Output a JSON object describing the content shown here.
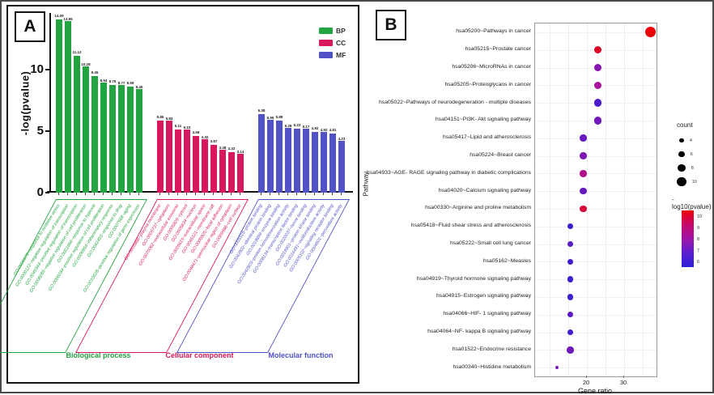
{
  "figure": {
    "panel_a_label": "A",
    "panel_b_label": "B"
  },
  "chart_data": [
    {
      "type": "bar",
      "panel": "A",
      "title": "",
      "xlabel": "",
      "ylabel": "-log(pvalue)",
      "ylim": [
        0,
        15
      ],
      "yticks": [
        0,
        5,
        10
      ],
      "legend_position": "top-right",
      "legend": [
        {
          "label": "BP",
          "color": "#23a342"
        },
        {
          "label": "CC",
          "color": "#d8175e"
        },
        {
          "label": "MF",
          "color": "#5152c6"
        }
      ],
      "groups": [
        {
          "name": "BP",
          "caption": "Biological process",
          "color": "#23a342",
          "categories": [
            "GO:0006979~response to oxidative stress",
            "GO:0000122~negative regulation of transcription",
            "GO:0045944~positive regulation of transcription",
            "GO:0008285~negative regulation of cell proliferation",
            "GO:0001666~response to hypoxia",
            "GO:0008284~positive regulation of cell proliferation",
            "GO:0006954~inflammatory response",
            "GO:0042493~response to drug",
            "GO:0007568~aging",
            "GO:0010628~positive regulation of gene expression"
          ],
          "values": [
            14.09,
            13.95,
            11.12,
            10.28,
            9.45,
            8.94,
            8.76,
            8.77,
            8.59,
            8.45
          ]
        },
        {
          "name": "CC",
          "caption": "Cellular component",
          "color": "#d8175e",
          "categories": [
            "GO:0005886~plasma membrane",
            "GO:0005737~cytoplasm",
            "GO:0070062~extracellular exosome",
            "GO:0005829~cytosol",
            "GO:0005634~nucleus",
            "GO:0005615~extracellular space",
            "GO:0045121~membrane raft",
            "GO:0005925~focal adhesion",
            "GO:0048471~perinuclear region of cytoplasm",
            "GO:0009986~cell surface"
          ],
          "values": [
            5.85,
            5.84,
            5.11,
            5.1,
            4.58,
            4.32,
            3.87,
            3.48,
            3.32,
            3.14
          ]
        },
        {
          "name": "MF",
          "caption": "Molecular function",
          "color": "#5152c6",
          "categories": [
            "GO:0005515~protein binding",
            "GO:0042802~identical protein binding",
            "GO:0019899~enzyme binding",
            "GO:0042803~protein homodimerization activity",
            "GO:0008134~transcription factor binding",
            "GO:0020037~heme binding",
            "GO:0019901~protein kinase binding",
            "GO:0016491~oxidoreductase activity",
            "GO:0005102~signaling receptor binding",
            "GO:0004601~peroxidase activity"
          ],
          "values": [
            6.38,
            5.95,
            5.88,
            5.28,
            5.23,
            5.17,
            4.92,
            4.92,
            4.81,
            4.23
          ]
        }
      ]
    },
    {
      "type": "scatter",
      "panel": "B",
      "title": "",
      "xlabel": "Gene ratio",
      "ylabel": "Pathway",
      "xticks": [
        20,
        30
      ],
      "xlim": [
        6,
        39
      ],
      "grid": true,
      "legend": {
        "count_title": "count",
        "count_sizes": [
          4,
          6,
          8,
          10
        ],
        "color_title": "- log10(pvalue)",
        "color_ticks": [
          10,
          9,
          8,
          7,
          6
        ],
        "color_stops": [
          "#ed0008",
          "#c4066a",
          "#a014a8",
          "#5b1fd0",
          "#2a1fd8"
        ]
      },
      "points": [
        {
          "pathway": "hsa05200~Pathways in cancer",
          "gene_ratio": 37,
          "count": 12,
          "neg_log10_pvalue": 10.0
        },
        {
          "pathway": "hsa05215~Prostate cancer",
          "gene_ratio": 23,
          "count": 8,
          "neg_log10_pvalue": 9.6
        },
        {
          "pathway": "hsa05206~MicroRNAs in cancer",
          "gene_ratio": 23,
          "count": 8,
          "neg_log10_pvalue": 7.6
        },
        {
          "pathway": "hsa05205~Proteoglycans in cancer",
          "gene_ratio": 23,
          "count": 8,
          "neg_log10_pvalue": 8.2
        },
        {
          "pathway": "hsa05022~Pathways of neurodegeneration - multiple diseases",
          "gene_ratio": 23,
          "count": 8,
          "neg_log10_pvalue": 6.6
        },
        {
          "pathway": "hsa04151~PI3K- Akt signaling pathway",
          "gene_ratio": 23,
          "count": 8,
          "neg_log10_pvalue": 7.2
        },
        {
          "pathway": "hsa05417~Lipid and atherosclerosis",
          "gene_ratio": 19,
          "count": 7,
          "neg_log10_pvalue": 7.0
        },
        {
          "pathway": "hsa05224~Breast cancer",
          "gene_ratio": 19,
          "count": 7,
          "neg_log10_pvalue": 7.4
        },
        {
          "pathway": "hsa04933~AGE- RAGE signaling pathway in diabetic complications",
          "gene_ratio": 19,
          "count": 7,
          "neg_log10_pvalue": 8.4
        },
        {
          "pathway": "hsa04020~Calcium signaling pathway",
          "gene_ratio": 19,
          "count": 7,
          "neg_log10_pvalue": 7.0
        },
        {
          "pathway": "hsa00330~Arginine and proline metabolism",
          "gene_ratio": 19,
          "count": 7,
          "neg_log10_pvalue": 9.4
        },
        {
          "pathway": "hsa05418~Fluid shear stress and atherosclerosis",
          "gene_ratio": 15.5,
          "count": 6,
          "neg_log10_pvalue": 6.4
        },
        {
          "pathway": "hsa05222~Small cell lung cancer",
          "gene_ratio": 15.5,
          "count": 6,
          "neg_log10_pvalue": 6.8
        },
        {
          "pathway": "hsa05162~Measles",
          "gene_ratio": 15.5,
          "count": 6,
          "neg_log10_pvalue": 6.4
        },
        {
          "pathway": "hsa04919~Thyroid hormone signaling pathway",
          "gene_ratio": 15.5,
          "count": 6,
          "neg_log10_pvalue": 6.4
        },
        {
          "pathway": "hsa04915~Estrogen signaling pathway",
          "gene_ratio": 15.5,
          "count": 6,
          "neg_log10_pvalue": 6.4
        },
        {
          "pathway": "hsa04066~HIF- 1 signaling pathway",
          "gene_ratio": 15.5,
          "count": 6,
          "neg_log10_pvalue": 6.8
        },
        {
          "pathway": "hsa04064~NF- kappa B signaling pathway",
          "gene_ratio": 15.5,
          "count": 6,
          "neg_log10_pvalue": 6.4
        },
        {
          "pathway": "hsa01522~Endocrine resistance",
          "gene_ratio": 15.5,
          "count": 7,
          "neg_log10_pvalue": 7.2
        },
        {
          "pathway": "hsa00340~Histidine metabolism",
          "gene_ratio": 12,
          "count": 2,
          "neg_log10_pvalue": 7.4
        }
      ]
    }
  ]
}
